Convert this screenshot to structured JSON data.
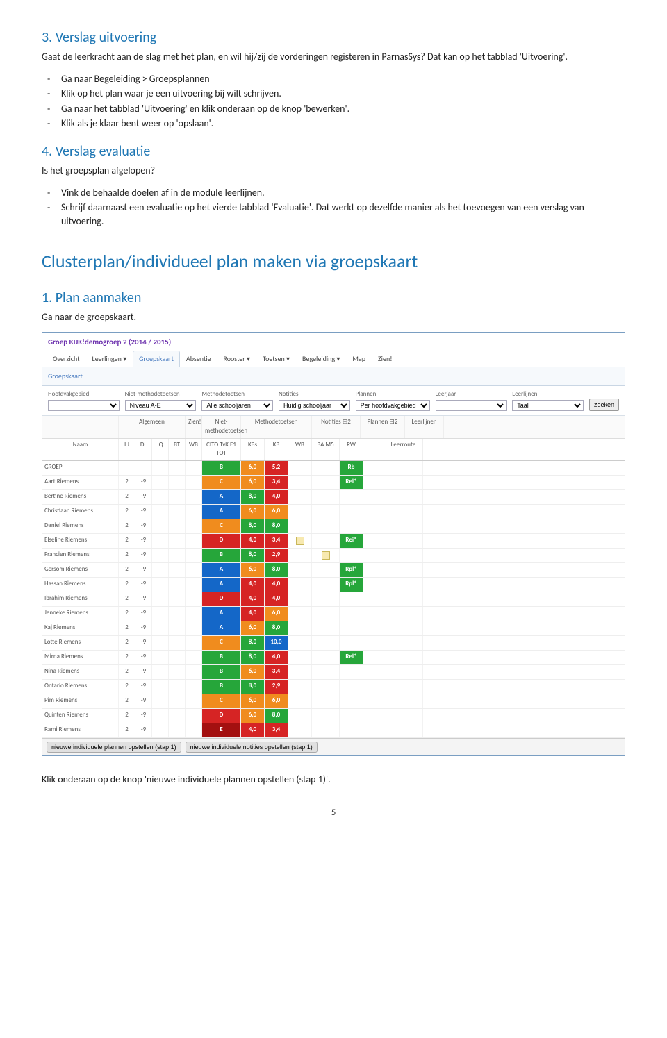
{
  "doc": {
    "section3": {
      "title": "3. Verslag uitvoering",
      "intro": "Gaat de leerkracht aan de slag met het plan, en wil hij/zij de vorderingen registeren in ParnasSys? Dat kan op het tabblad 'Uitvoering'.",
      "items": [
        "Ga naar Begeleiding > Groepsplannen",
        "Klik op het plan waar je een uitvoering bij wilt schrijven.",
        "Ga naar het tabblad 'Uitvoering' en klik onderaan op de knop 'bewerken'.",
        "Klik als je klaar bent weer op 'opslaan'."
      ]
    },
    "section4": {
      "title": "4. Verslag evaluatie",
      "intro": "Is het groepsplan afgelopen?",
      "items": [
        "Vink de behaalde doelen af in de module leerlijnen.",
        "Schrijf daarnaast een evaluatie op het vierde tabblad 'Evaluatie'. Dat werkt op dezelfde manier als het toevoegen van een verslag van uitvoering."
      ]
    },
    "big_title": "Clusterplan/individueel plan maken via groepskaart",
    "section1b": {
      "title": "1. Plan aanmaken",
      "intro": "Ga naar de groepskaart."
    },
    "closing": "Klik onderaan op de knop 'nieuwe individuele plannen opstellen (stap 1)'.",
    "page": "5"
  },
  "app": {
    "header": "Groep KIJK!demogroep 2 (2014 / 2015)",
    "tabs": [
      "Overzicht",
      "Leerlingen ▾",
      "Groepskaart",
      "Absentie",
      "Rooster ▾",
      "Toetsen ▾",
      "Begeleiding ▾",
      "Map",
      "Zien!"
    ],
    "active_tab": 2,
    "panel_title": "Groepskaart",
    "filters": {
      "labels": [
        "Hoofdvakgebied",
        "Niet-methodetoetsen",
        "Methodetoetsen",
        "Notities",
        "Plannen",
        "Leerjaar",
        "Leerlijnen"
      ],
      "values": [
        "",
        "Niveau A-E",
        "Alle schooljaren",
        "Huidig schooljaar",
        "Per hoofdvakgebied",
        "",
        "Taal"
      ],
      "search": "zoeken"
    },
    "group_headers": [
      "",
      "Algemeen",
      "Zien!",
      "Niet-methodetoetsen",
      "Methodetoetsen",
      "Notities ⊟2",
      "Plannen ⊟2",
      "Leerlijnen"
    ],
    "col_headers": [
      "Naam",
      "LJ",
      "DL",
      "IQ",
      "BT",
      "WB",
      "CITO TvK E1 TOT",
      "KBs",
      "KB",
      "WB",
      "BA M5",
      "RW",
      "",
      "Leerroute"
    ],
    "colors": {
      "green": "#26a63a",
      "orange": "#f08c1e",
      "blue": "#1467c8",
      "red": "#d62424",
      "darkred": "#a31010"
    },
    "rows": [
      {
        "name": "GROEP",
        "lj": "",
        "dl": "",
        "cito": "B",
        "cito_c": "green",
        "kbs": "6,0",
        "kbs_c": "orange",
        "kb": "5,2",
        "kb_c": "red",
        "rw": "Rb",
        "rw_c": "green"
      },
      {
        "name": "Aart Riemens",
        "lj": "2",
        "dl": "-9",
        "cito": "C",
        "cito_c": "orange",
        "kbs": "6,0",
        "kbs_c": "orange",
        "kb": "3,4",
        "kb_c": "red",
        "rw": "Rei*",
        "rw_c": "green"
      },
      {
        "name": "Bertine Riemens",
        "lj": "2",
        "dl": "-9",
        "cito": "A",
        "cito_c": "blue",
        "kbs": "8,0",
        "kbs_c": "green",
        "kb": "4,0",
        "kb_c": "red"
      },
      {
        "name": "Christiaan Riemens",
        "lj": "2",
        "dl": "-9",
        "cito": "A",
        "cito_c": "blue",
        "kbs": "6,0",
        "kbs_c": "orange",
        "kb": "6,0",
        "kb_c": "orange"
      },
      {
        "name": "Daniel Riemens",
        "lj": "2",
        "dl": "-9",
        "cito": "C",
        "cito_c": "orange",
        "kbs": "8,0",
        "kbs_c": "green",
        "kb": "8,0",
        "kb_c": "green"
      },
      {
        "name": "Elseline Riemens",
        "lj": "2",
        "dl": "-9",
        "cito": "D",
        "cito_c": "red",
        "kbs": "4,0",
        "kbs_c": "red",
        "kb": "3,4",
        "kb_c": "red",
        "note1": true,
        "rw": "Rei*",
        "rw_c": "green"
      },
      {
        "name": "Francien Riemens",
        "lj": "2",
        "dl": "-9",
        "cito": "B",
        "cito_c": "green",
        "kbs": "8,0",
        "kbs_c": "green",
        "kb": "2,9",
        "kb_c": "red",
        "note2": true
      },
      {
        "name": "Gersom Riemens",
        "lj": "2",
        "dl": "-9",
        "cito": "A",
        "cito_c": "blue",
        "kbs": "6,0",
        "kbs_c": "orange",
        "kb": "8,0",
        "kb_c": "green",
        "rw": "Rpl*",
        "rw_c": "green"
      },
      {
        "name": "Hassan Riemens",
        "lj": "2",
        "dl": "-9",
        "cito": "A",
        "cito_c": "blue",
        "kbs": "4,0",
        "kbs_c": "red",
        "kb": "4,0",
        "kb_c": "red",
        "rw": "Rpl*",
        "rw_c": "green"
      },
      {
        "name": "Ibrahim Riemens",
        "lj": "2",
        "dl": "-9",
        "cito": "D",
        "cito_c": "red",
        "kbs": "4,0",
        "kbs_c": "red",
        "kb": "4,0",
        "kb_c": "red"
      },
      {
        "name": "Jenneke Riemens",
        "lj": "2",
        "dl": "-9",
        "cito": "A",
        "cito_c": "blue",
        "kbs": "4,0",
        "kbs_c": "red",
        "kb": "6,0",
        "kb_c": "orange"
      },
      {
        "name": "Kaj Riemens",
        "lj": "2",
        "dl": "-9",
        "cito": "A",
        "cito_c": "blue",
        "kbs": "6,0",
        "kbs_c": "orange",
        "kb": "8,0",
        "kb_c": "green"
      },
      {
        "name": "Lotte Riemens",
        "lj": "2",
        "dl": "-9",
        "cito": "C",
        "cito_c": "orange",
        "kbs": "8,0",
        "kbs_c": "green",
        "kb": "10,0",
        "kb_c": "blue"
      },
      {
        "name": "Mirna Riemens",
        "lj": "2",
        "dl": "-9",
        "cito": "B",
        "cito_c": "green",
        "kbs": "8,0",
        "kbs_c": "green",
        "kb": "4,0",
        "kb_c": "red",
        "rw": "Rei*",
        "rw_c": "green"
      },
      {
        "name": "Nina Riemens",
        "lj": "2",
        "dl": "-9",
        "cito": "B",
        "cito_c": "green",
        "kbs": "6,0",
        "kbs_c": "orange",
        "kb": "3,4",
        "kb_c": "red"
      },
      {
        "name": "Ontario Riemens",
        "lj": "2",
        "dl": "-9",
        "cito": "B",
        "cito_c": "green",
        "kbs": "8,0",
        "kbs_c": "green",
        "kb": "2,9",
        "kb_c": "red"
      },
      {
        "name": "Pim Riemens",
        "lj": "2",
        "dl": "-9",
        "cito": "C",
        "cito_c": "orange",
        "kbs": "6,0",
        "kbs_c": "orange",
        "kb": "6,0",
        "kb_c": "orange"
      },
      {
        "name": "Quinten Riemens",
        "lj": "2",
        "dl": "-9",
        "cito": "D",
        "cito_c": "red",
        "kbs": "6,0",
        "kbs_c": "orange",
        "kb": "8,0",
        "kb_c": "green"
      },
      {
        "name": "Rami Riemens",
        "lj": "2",
        "dl": "-9",
        "cito": "E",
        "cito_c": "darkred",
        "kbs": "4,0",
        "kbs_c": "red",
        "kb": "3,4",
        "kb_c": "red"
      }
    ],
    "footer_buttons": [
      "nieuwe individuele plannen opstellen (stap 1)",
      "nieuwe individuele notities opstellen (stap 1)"
    ]
  }
}
